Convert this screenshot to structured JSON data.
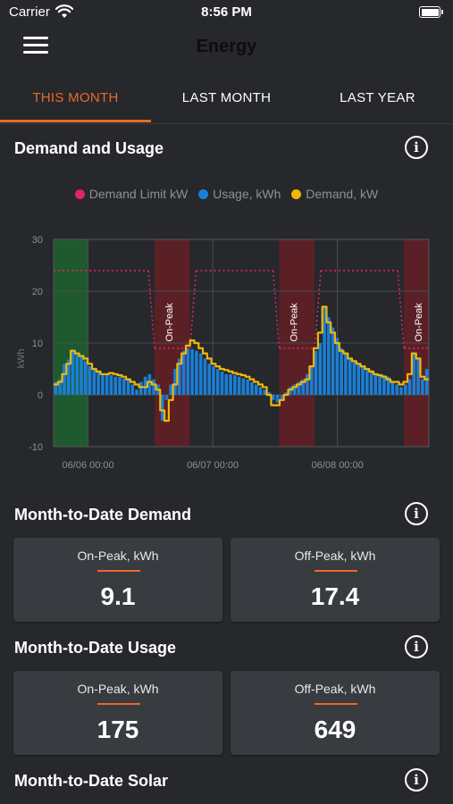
{
  "status_bar": {
    "carrier": "Carrier",
    "time": "8:56 PM"
  },
  "nav": {
    "title": "Energy"
  },
  "tabs": [
    {
      "label": "THIS MONTH",
      "active": true
    },
    {
      "label": "LAST MONTH",
      "active": false
    },
    {
      "label": "LAST YEAR",
      "active": false
    }
  ],
  "demand_usage": {
    "title": "Demand and Usage",
    "legend": [
      {
        "label": "Demand Limit kW",
        "color": "#e0245e"
      },
      {
        "label": "Usage, kWh",
        "color": "#1a7fd6"
      },
      {
        "label": "Demand, kW",
        "color": "#f2b705"
      }
    ]
  },
  "chart_data": {
    "type": "bar",
    "ylabel": "kWh",
    "ylim": [
      -10,
      30
    ],
    "yticks": [
      -10,
      0,
      10,
      20,
      30
    ],
    "xlim": [
      -0.83,
      8.2
    ],
    "xticks": [
      {
        "x": 0,
        "label": "06/06 00:00"
      },
      {
        "x": 3,
        "label": "06/07 00:00"
      },
      {
        "x": 6,
        "label": "06/08 00:00"
      }
    ],
    "grid": true,
    "off_peak_band": {
      "x0": -0.83,
      "x1": 0,
      "color": "#1e5a2e"
    },
    "on_peak_bands": [
      {
        "x0": 1.6,
        "x1": 2.45,
        "label": "On-Peak"
      },
      {
        "x0": 4.6,
        "x1": 5.45,
        "label": "On-Peak"
      },
      {
        "x0": 7.6,
        "x1": 8.2,
        "label": "On-Peak"
      }
    ],
    "on_peak_color": "#5a2026",
    "series": [
      {
        "name": "Usage, kWh",
        "type": "bar",
        "color": "#1a7fd6",
        "values": [
          2.5,
          3,
          6,
          6.8,
          8.8,
          8,
          7.5,
          6.5,
          5.5,
          5,
          4.5,
          4,
          4,
          3.8,
          3.5,
          3.5,
          3.2,
          3,
          2,
          1,
          2.5,
          3.5,
          4,
          3,
          2,
          -5,
          -1,
          2,
          5,
          7,
          8.5,
          9,
          8.8,
          8.5,
          8,
          7,
          6,
          5.5,
          5,
          4.5,
          4,
          4,
          3.8,
          3.5,
          3.2,
          3,
          2.5,
          2,
          1.5,
          1,
          0.5,
          -1,
          -1.5,
          -1,
          0.5,
          1.5,
          2,
          2.5,
          3,
          4,
          5.5,
          8.5,
          10,
          17,
          15,
          13,
          11,
          9,
          8,
          7,
          6.5,
          6,
          5.5,
          5,
          4.5,
          4,
          4,
          3.8,
          3.5,
          2.5,
          2,
          1.5,
          2,
          3,
          8,
          7,
          3,
          5
        ]
      },
      {
        "name": "Demand, kW",
        "type": "line",
        "color": "#f2b705",
        "values": [
          2,
          2.5,
          4,
          6,
          8.5,
          8,
          7.5,
          7,
          6,
          5,
          4.5,
          4,
          4,
          4.2,
          4,
          3.8,
          3.5,
          3,
          2.5,
          2,
          1.5,
          1.5,
          2.5,
          2,
          1,
          -3,
          -5,
          -1,
          2,
          6,
          8,
          9.5,
          10.5,
          10,
          9,
          8,
          7,
          6,
          5.5,
          5,
          4.8,
          4.5,
          4.2,
          4,
          3.8,
          3.5,
          3,
          2.5,
          2,
          1.5,
          0,
          -2,
          -2,
          -1,
          0,
          1,
          1.5,
          2,
          2.5,
          3,
          5.5,
          9,
          12,
          17,
          14,
          12,
          10,
          8.5,
          8,
          7,
          6.5,
          6,
          5.5,
          5,
          4.5,
          4,
          3.8,
          3.5,
          3,
          2.5,
          2.5,
          2,
          2.5,
          4,
          8,
          7,
          3.5,
          3
        ]
      },
      {
        "name": "Demand Limit kW",
        "type": "line",
        "dashed": true,
        "color": "#e0245e",
        "segments": [
          {
            "x0": -0.83,
            "x1": 1.45,
            "y": 24
          },
          {
            "x0": 1.45,
            "x1": 1.6,
            "y0": 24,
            "y1": 9
          },
          {
            "x0": 1.6,
            "x1": 2.45,
            "y": 9
          },
          {
            "x0": 2.45,
            "x1": 2.6,
            "y0": 9,
            "y1": 24
          },
          {
            "x0": 2.6,
            "x1": 4.45,
            "y": 24
          },
          {
            "x0": 4.45,
            "x1": 4.6,
            "y0": 24,
            "y1": 9
          },
          {
            "x0": 4.6,
            "x1": 5.45,
            "y": 9
          },
          {
            "x0": 5.45,
            "x1": 5.6,
            "y0": 9,
            "y1": 24
          },
          {
            "x0": 5.6,
            "x1": 7.45,
            "y": 24
          },
          {
            "x0": 7.45,
            "x1": 7.6,
            "y0": 24,
            "y1": 9
          },
          {
            "x0": 7.6,
            "x1": 8.2,
            "y": 9
          }
        ]
      }
    ]
  },
  "mtd_demand": {
    "title": "Month-to-Date Demand",
    "cards": [
      {
        "label": "On-Peak, kWh",
        "value": "9.1"
      },
      {
        "label": "Off-Peak, kWh",
        "value": "17.4"
      }
    ]
  },
  "mtd_usage": {
    "title": "Month-to-Date Usage",
    "cards": [
      {
        "label": "On-Peak, kWh",
        "value": "175"
      },
      {
        "label": "Off-Peak, kWh",
        "value": "649"
      }
    ]
  },
  "mtd_solar": {
    "title": "Month-to-Date Solar"
  },
  "info_glyph": "i"
}
